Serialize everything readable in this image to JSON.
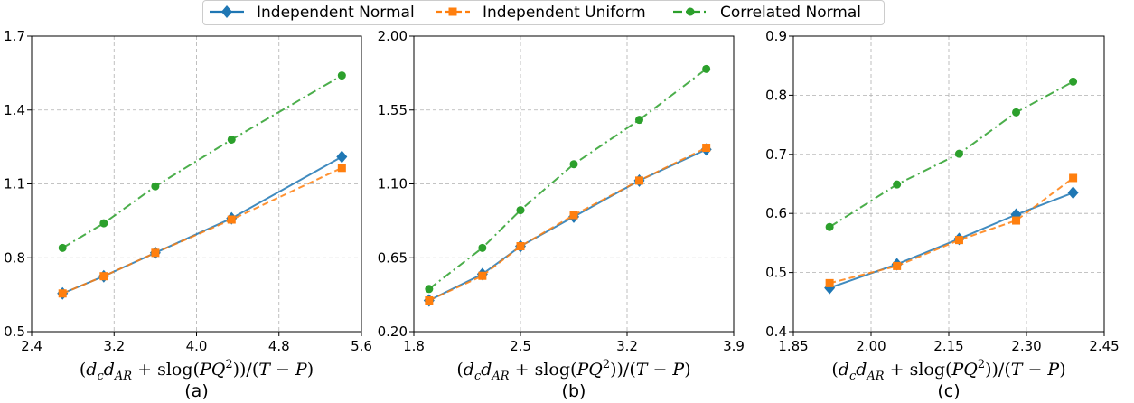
{
  "legend": {
    "entries": [
      {
        "label": "Independent Normal",
        "color": "#1f77b4",
        "marker": "diamond",
        "dash": "solid"
      },
      {
        "label": "Independent Uniform",
        "color": "#ff7f0e",
        "marker": "square",
        "dash": "dashed"
      },
      {
        "label": "Correlated Normal",
        "color": "#2ca02c",
        "marker": "circle",
        "dash": "dashdot"
      }
    ]
  },
  "chart_data": [
    {
      "type": "line",
      "panel_label": "(a)",
      "xlabel": "(d_c d_AR + slog(PQ²))/(T − P)",
      "xlim": [
        2.4,
        5.6
      ],
      "ylim": [
        0.5,
        1.7
      ],
      "xticks": [
        "2.4",
        "3.2",
        "4.0",
        "4.8",
        "5.6"
      ],
      "yticks": [
        "0.5",
        "0.8",
        "1.1",
        "1.4",
        "1.7"
      ],
      "grid": true,
      "series": [
        {
          "name": "Independent Normal",
          "x": [
            2.7,
            3.1,
            3.6,
            4.34,
            5.41
          ],
          "y": [
            0.655,
            0.725,
            0.82,
            0.96,
            1.21
          ]
        },
        {
          "name": "Independent Uniform",
          "x": [
            2.7,
            3.1,
            3.6,
            4.34,
            5.41
          ],
          "y": [
            0.655,
            0.725,
            0.82,
            0.955,
            1.165
          ]
        },
        {
          "name": "Correlated Normal",
          "x": [
            2.7,
            3.1,
            3.6,
            4.34,
            5.41
          ],
          "y": [
            0.84,
            0.94,
            1.09,
            1.28,
            1.54
          ]
        }
      ]
    },
    {
      "type": "line",
      "panel_label": "(b)",
      "xlabel": "(d_c d_AR + slog(PQ²))/(T − P)",
      "xlim": [
        1.8,
        3.9
      ],
      "ylim": [
        0.2,
        2.0
      ],
      "xticks": [
        "1.8",
        "2.5",
        "3.2",
        "3.9"
      ],
      "yticks": [
        "0.20",
        "0.65",
        "1.10",
        "1.55",
        "2.00"
      ],
      "grid": true,
      "series": [
        {
          "name": "Independent Normal",
          "x": [
            1.9,
            2.25,
            2.5,
            2.85,
            3.28,
            3.72
          ],
          "y": [
            0.39,
            0.55,
            0.72,
            0.9,
            1.12,
            1.31
          ]
        },
        {
          "name": "Independent Uniform",
          "x": [
            1.9,
            2.25,
            2.5,
            2.85,
            3.28,
            3.72
          ],
          "y": [
            0.39,
            0.54,
            0.72,
            0.91,
            1.12,
            1.32
          ]
        },
        {
          "name": "Correlated Normal",
          "x": [
            1.9,
            2.25,
            2.5,
            2.85,
            3.28,
            3.72
          ],
          "y": [
            0.46,
            0.71,
            0.94,
            1.22,
            1.49,
            1.8
          ]
        }
      ]
    },
    {
      "type": "line",
      "panel_label": "(c)",
      "xlabel": "(d_c d_AR + slog(PQ²))/(T − P)",
      "xlim": [
        1.85,
        2.45
      ],
      "ylim": [
        0.4,
        0.9
      ],
      "xticks": [
        "1.85",
        "2.00",
        "2.15",
        "2.30",
        "2.45"
      ],
      "yticks": [
        "0.4",
        "0.5",
        "0.6",
        "0.7",
        "0.8",
        "0.9"
      ],
      "grid": true,
      "series": [
        {
          "name": "Independent Normal",
          "x": [
            1.92,
            2.05,
            2.17,
            2.28,
            2.39
          ],
          "y": [
            0.474,
            0.514,
            0.557,
            0.598,
            0.635
          ]
        },
        {
          "name": "Independent Uniform",
          "x": [
            1.92,
            2.05,
            2.17,
            2.28,
            2.39
          ],
          "y": [
            0.482,
            0.511,
            0.555,
            0.588,
            0.66
          ]
        },
        {
          "name": "Correlated Normal",
          "x": [
            1.92,
            2.05,
            2.17,
            2.28,
            2.39
          ],
          "y": [
            0.577,
            0.649,
            0.701,
            0.771,
            0.823
          ]
        }
      ]
    }
  ]
}
